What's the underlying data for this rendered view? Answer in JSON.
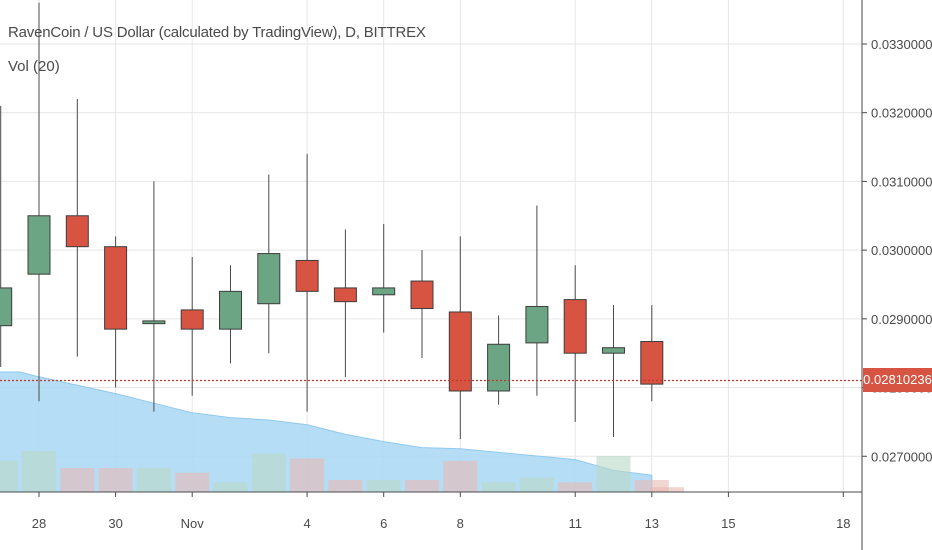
{
  "header": {
    "title": "RavenCoin / US Dollar (calculated by TradingView), D, BITTREX",
    "indicator": "Vol (20)"
  },
  "last_price_label": "0.02810236",
  "colors": {
    "up_fill": "#6ba583",
    "down_fill": "#d75442",
    "wick": "#4a4a4a",
    "grid": "#e6e6e6",
    "volume_ma_fill": "#a9d7f5",
    "last_price_line": "#c0392b"
  },
  "chart_data": {
    "type": "candlestick",
    "title": "RavenCoin / US Dollar (calculated by TradingView), D, BITTREX",
    "y_ticks": [
      "0.02700000",
      "0.02800000",
      "0.02900000",
      "0.03000000",
      "0.03100000",
      "0.03200000",
      "0.03300000"
    ],
    "y_tick_values": [
      0.027,
      0.028,
      0.029,
      0.03,
      0.031,
      0.032,
      0.033
    ],
    "ylim": [
      0.02648,
      0.03364
    ],
    "x_ticks": [
      {
        "label": "28",
        "day": 0
      },
      {
        "label": "30",
        "day": 2
      },
      {
        "label": "Nov",
        "day": 4
      },
      {
        "label": "4",
        "day": 7
      },
      {
        "label": "6",
        "day": 9
      },
      {
        "label": "8",
        "day": 11
      },
      {
        "label": "11",
        "day": 14
      },
      {
        "label": "13",
        "day": 16
      },
      {
        "label": "15",
        "day": 18
      },
      {
        "label": "18",
        "day": 21
      }
    ],
    "last_price": 0.02810236,
    "candles": [
      {
        "day": -1,
        "open": 0.0289,
        "high": 0.0321,
        "low": 0.0283,
        "close": 0.02945
      },
      {
        "day": 0,
        "open": 0.02965,
        "high": 0.0336,
        "low": 0.0278,
        "close": 0.0305
      },
      {
        "day": 1,
        "open": 0.0305,
        "high": 0.0322,
        "low": 0.02845,
        "close": 0.03005
      },
      {
        "day": 2,
        "open": 0.03005,
        "high": 0.0302,
        "low": 0.028,
        "close": 0.02885
      },
      {
        "day": 3,
        "open": 0.02893,
        "high": 0.031,
        "low": 0.02765,
        "close": 0.02897
      },
      {
        "day": 4,
        "open": 0.02913,
        "high": 0.0299,
        "low": 0.02788,
        "close": 0.02885
      },
      {
        "day": 5,
        "open": 0.02885,
        "high": 0.02978,
        "low": 0.02835,
        "close": 0.0294
      },
      {
        "day": 6,
        "open": 0.02922,
        "high": 0.0311,
        "low": 0.0285,
        "close": 0.02995
      },
      {
        "day": 7,
        "open": 0.02985,
        "high": 0.0314,
        "low": 0.02765,
        "close": 0.0294
      },
      {
        "day": 8,
        "open": 0.02945,
        "high": 0.0303,
        "low": 0.02815,
        "close": 0.02925
      },
      {
        "day": 9,
        "open": 0.02935,
        "high": 0.03038,
        "low": 0.0288,
        "close": 0.02945
      },
      {
        "day": 10,
        "open": 0.02955,
        "high": 0.03,
        "low": 0.02843,
        "close": 0.02915
      },
      {
        "day": 11,
        "open": 0.0291,
        "high": 0.0302,
        "low": 0.02725,
        "close": 0.02795
      },
      {
        "day": 12,
        "open": 0.02795,
        "high": 0.02905,
        "low": 0.02775,
        "close": 0.02863
      },
      {
        "day": 13,
        "open": 0.02865,
        "high": 0.03065,
        "low": 0.02788,
        "close": 0.02918
      },
      {
        "day": 14,
        "open": 0.02928,
        "high": 0.02978,
        "low": 0.0275,
        "close": 0.0285
      },
      {
        "day": 15,
        "open": 0.0285,
        "high": 0.0292,
        "low": 0.02728,
        "close": 0.02858
      },
      {
        "day": 16,
        "open": 0.02867,
        "high": 0.0292,
        "low": 0.0278,
        "close": 0.02805
      }
    ],
    "volume": {
      "indicator": "Vol (20)",
      "ma_values": [
        1.0,
        1.0,
        0.96,
        0.82,
        0.74,
        0.66,
        0.62,
        0.6,
        0.56,
        0.48,
        0.42,
        0.37,
        0.36,
        0.33,
        0.27,
        0.18,
        0.14
      ],
      "ma_days": [
        -1.5,
        -0.5,
        0,
        2,
        3,
        4,
        5,
        6,
        7,
        8,
        9,
        10,
        11,
        12,
        14,
        15,
        16
      ],
      "bar_values": [
        0.26,
        0.34,
        0.2,
        0.2,
        0.2,
        0.16,
        0.08,
        0.32,
        0.28,
        0.1,
        0.1,
        0.1,
        0.26,
        0.08,
        0.12,
        0.08,
        0.3,
        0.1,
        0.04
      ],
      "bar_days": [
        -1,
        0,
        1,
        2,
        3,
        4,
        5,
        6,
        7,
        8,
        9,
        10,
        11,
        12,
        13,
        14,
        15,
        16,
        16.4
      ]
    }
  }
}
